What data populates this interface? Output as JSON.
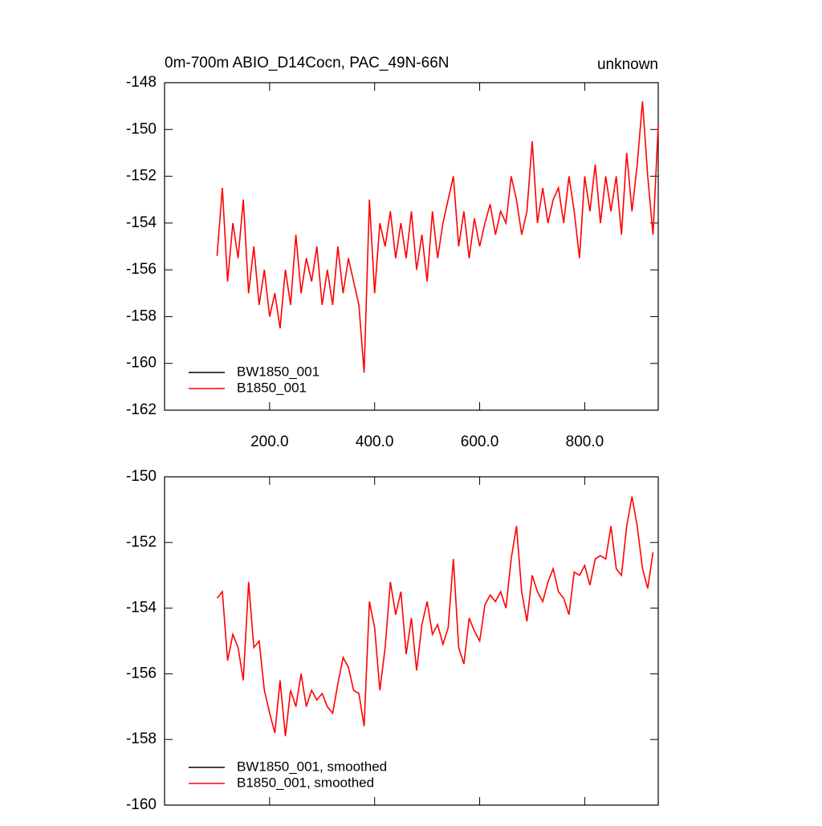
{
  "chart_data": [
    {
      "type": "line",
      "title": "0m-700m ABIO_D14Cocn, PAC_49N-66N",
      "subtitle": "unknown",
      "x": [
        100,
        110,
        120,
        130,
        140,
        150,
        160,
        170,
        180,
        190,
        200,
        210,
        220,
        230,
        240,
        250,
        260,
        270,
        280,
        290,
        300,
        310,
        320,
        330,
        340,
        350,
        360,
        370,
        380,
        390,
        400,
        410,
        420,
        430,
        440,
        450,
        460,
        470,
        480,
        490,
        500,
        510,
        520,
        530,
        540,
        550,
        560,
        570,
        580,
        590,
        600,
        610,
        620,
        630,
        640,
        650,
        660,
        670,
        680,
        690,
        700,
        710,
        720,
        730,
        740,
        750,
        760,
        770,
        780,
        790,
        800,
        810,
        820,
        830,
        840,
        850,
        860,
        870,
        880,
        890,
        900,
        910,
        920,
        930,
        940
      ],
      "series": [
        {
          "name": "BW1850_001",
          "color": "#000000",
          "values": [
            null,
            null,
            null,
            null,
            null,
            null,
            null,
            null,
            null,
            null,
            null,
            null,
            null,
            null,
            null,
            null,
            null,
            null,
            null,
            null,
            null,
            null,
            null,
            null,
            null,
            null,
            null,
            null,
            null,
            null,
            null,
            null,
            null,
            null,
            null,
            null,
            null,
            null,
            null,
            null,
            null,
            null,
            null,
            null,
            null,
            null,
            null,
            null,
            null,
            null,
            null,
            null,
            null,
            null,
            null,
            null,
            null,
            null,
            null,
            null,
            null,
            null,
            null,
            null,
            null,
            null,
            null,
            null,
            null,
            null,
            null,
            null,
            null,
            null,
            null,
            null,
            null,
            null,
            null,
            null,
            null,
            null,
            null,
            null,
            null
          ]
        },
        {
          "name": "B1850_001",
          "color": "#ff0000",
          "values": [
            -155.4,
            -152.5,
            -156.5,
            -154,
            -155.5,
            -153,
            -157,
            -155,
            -157.5,
            -156,
            -158,
            -157,
            -158.5,
            -156,
            -157.5,
            -154.5,
            -157,
            -155.5,
            -156.5,
            -155,
            -157.5,
            -156,
            -157.5,
            -155,
            -157,
            -155.5,
            -156.5,
            -157.5,
            -160.4,
            -153,
            -157,
            -154,
            -155,
            -153.5,
            -155.5,
            -154,
            -155.5,
            -153.5,
            -156,
            -154.5,
            -156.5,
            -153.5,
            -155.5,
            -154,
            -153,
            -152,
            -155,
            -153.5,
            -155.5,
            -153.8,
            -155,
            -154,
            -153.2,
            -154.5,
            -153.5,
            -154,
            -152,
            -153,
            -154.5,
            -153.5,
            -150.5,
            -154,
            -152.5,
            -154,
            -153,
            -152.5,
            -154,
            -152,
            -153.5,
            -155.5,
            -152,
            -153.5,
            -151.5,
            -154,
            -152,
            -153.5,
            -152,
            -154.5,
            -151,
            -153.5,
            -151.5,
            -148.8,
            -152,
            -154.5,
            -149.8
          ]
        }
      ],
      "xlim": [
        0,
        940
      ],
      "xticks": [
        {
          "value": 200,
          "label": "200.0"
        },
        {
          "value": 400,
          "label": "400.0"
        },
        {
          "value": 600,
          "label": "600.0"
        },
        {
          "value": 800,
          "label": "800.0"
        }
      ],
      "ylim": [
        -162,
        -148
      ],
      "yticks": [
        -162,
        -160,
        -158,
        -156,
        -154,
        -152,
        -150,
        -148
      ],
      "legend": "lower left"
    },
    {
      "type": "line",
      "x": [
        100,
        110,
        120,
        130,
        140,
        150,
        160,
        170,
        180,
        190,
        200,
        210,
        220,
        230,
        240,
        250,
        260,
        270,
        280,
        290,
        300,
        310,
        320,
        330,
        340,
        350,
        360,
        370,
        380,
        390,
        400,
        410,
        420,
        430,
        440,
        450,
        460,
        470,
        480,
        490,
        500,
        510,
        520,
        530,
        540,
        550,
        560,
        570,
        580,
        590,
        600,
        610,
        620,
        630,
        640,
        650,
        660,
        670,
        680,
        690,
        700,
        710,
        720,
        730,
        740,
        750,
        760,
        770,
        780,
        790,
        800,
        810,
        820,
        830,
        840,
        850,
        860,
        870,
        880,
        890,
        900,
        910,
        920,
        930
      ],
      "series": [
        {
          "name": "BW1850_001, smoothed",
          "color": "#000000",
          "values": [
            null,
            null,
            null,
            null,
            null,
            null,
            null,
            null,
            null,
            null,
            null,
            null,
            null,
            null,
            null,
            null,
            null,
            null,
            null,
            null,
            null,
            null,
            null,
            null,
            null,
            null,
            null,
            null,
            null,
            null,
            null,
            null,
            null,
            null,
            null,
            null,
            null,
            null,
            null,
            null,
            null,
            null,
            null,
            null,
            null,
            null,
            null,
            null,
            null,
            null,
            null,
            null,
            null,
            null,
            null,
            null,
            null,
            null,
            null,
            null,
            null,
            null,
            null,
            null,
            null,
            null,
            null,
            null,
            null,
            null,
            null,
            null,
            null,
            null,
            null,
            null,
            null,
            null,
            null,
            null,
            null,
            null,
            null,
            null
          ]
        },
        {
          "name": "B1850_001, smoothed",
          "color": "#ff0000",
          "values": [
            -153.7,
            -153.5,
            -155.6,
            -154.8,
            -155.2,
            -156.2,
            -153.2,
            -155.2,
            -155,
            -156.5,
            -157.2,
            -157.8,
            -156.2,
            -157.9,
            -156.5,
            -157,
            -156,
            -157,
            -156.5,
            -156.8,
            -156.6,
            -157,
            -157.2,
            -156.3,
            -155.5,
            -155.8,
            -156.5,
            -156.6,
            -157.6,
            -153.8,
            -154.6,
            -156.5,
            -155.2,
            -153.2,
            -154.2,
            -153.5,
            -155.4,
            -154.3,
            -155.9,
            -154.5,
            -153.8,
            -154.8,
            -154.5,
            -155.1,
            -154.6,
            -152.5,
            -155.2,
            -155.7,
            -154.3,
            -154.7,
            -155,
            -153.9,
            -153.6,
            -153.8,
            -153.5,
            -154,
            -152.5,
            -151.5,
            -153.5,
            -154.4,
            -153,
            -153.5,
            -153.8,
            -153.2,
            -152.8,
            -153.5,
            -153.7,
            -154.2,
            -152.9,
            -153,
            -152.7,
            -153.3,
            -152.5,
            -152.4,
            -152.5,
            -151.5,
            -152.8,
            -153,
            -151.5,
            -150.6,
            -151.5,
            -152.8,
            -153.4,
            -152.3
          ]
        }
      ],
      "xlim": [
        0,
        940
      ],
      "xticks": [
        200,
        400,
        600,
        800
      ],
      "xtick_labels": false,
      "ylim": [
        -160,
        -150
      ],
      "yticks": [
        -160,
        -158,
        -156,
        -154,
        -152,
        -150
      ],
      "legend": "lower left"
    }
  ]
}
